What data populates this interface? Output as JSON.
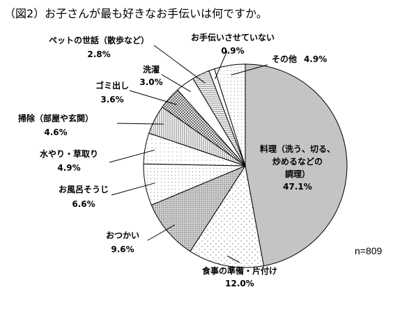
{
  "chart_data": {
    "type": "pie",
    "title": "（図2）お子さんが最も好きなお手伝いは何ですか。",
    "note": "n=809",
    "unit": "%",
    "slices": [
      {
        "name": "料理（洗う、切る、炒めるなどの調理）",
        "label_lines": [
          "料理（洗う、切る、",
          "炒めるなどの",
          "調理）"
        ],
        "value": 47.1,
        "value_label": "47.1%",
        "pattern": "gray"
      },
      {
        "name": "食事の準備・片付け",
        "label_lines": [
          "食事の準備・片付け"
        ],
        "value": 12.0,
        "value_label": "12.0%",
        "pattern": "dots"
      },
      {
        "name": "おつかい",
        "label_lines": [
          "おつかい"
        ],
        "value": 9.6,
        "value_label": "9.6%",
        "pattern": "dense-dots"
      },
      {
        "name": "お風呂そうじ",
        "label_lines": [
          "お風呂そうじ"
        ],
        "value": 6.6,
        "value_label": "6.6%",
        "pattern": "light-dots"
      },
      {
        "name": "水やり・草取り",
        "label_lines": [
          "水やり・草取り"
        ],
        "value": 4.9,
        "value_label": "4.9%",
        "pattern": "sparse-dots"
      },
      {
        "name": "掃除（部屋や玄関）",
        "label_lines": [
          "掃除（部屋や玄関）"
        ],
        "value": 4.6,
        "value_label": "4.6%",
        "pattern": "vertical-lines"
      },
      {
        "name": "ゴミ出し",
        "label_lines": [
          "ゴミ出し"
        ],
        "value": 3.6,
        "value_label": "3.6%",
        "pattern": "checker"
      },
      {
        "name": "洗濯",
        "label_lines": [
          "洗濯"
        ],
        "value": 3.0,
        "value_label": "3.0%",
        "pattern": "white"
      },
      {
        "name": "ペットの世話（散歩など）",
        "label_lines": [
          "ペットの世話（散歩など）"
        ],
        "value": 2.8,
        "value_label": "2.8%",
        "pattern": "horizontal-lines"
      },
      {
        "name": "お手伝いさせていない",
        "label_lines": [
          "お手伝いさせていない"
        ],
        "value": 0.9,
        "value_label": "0.9%",
        "pattern": "white"
      },
      {
        "name": "その他",
        "label_lines": [
          "その他"
        ],
        "value": 4.9,
        "value_label": "4.9%",
        "pattern": "light-dots"
      }
    ]
  }
}
